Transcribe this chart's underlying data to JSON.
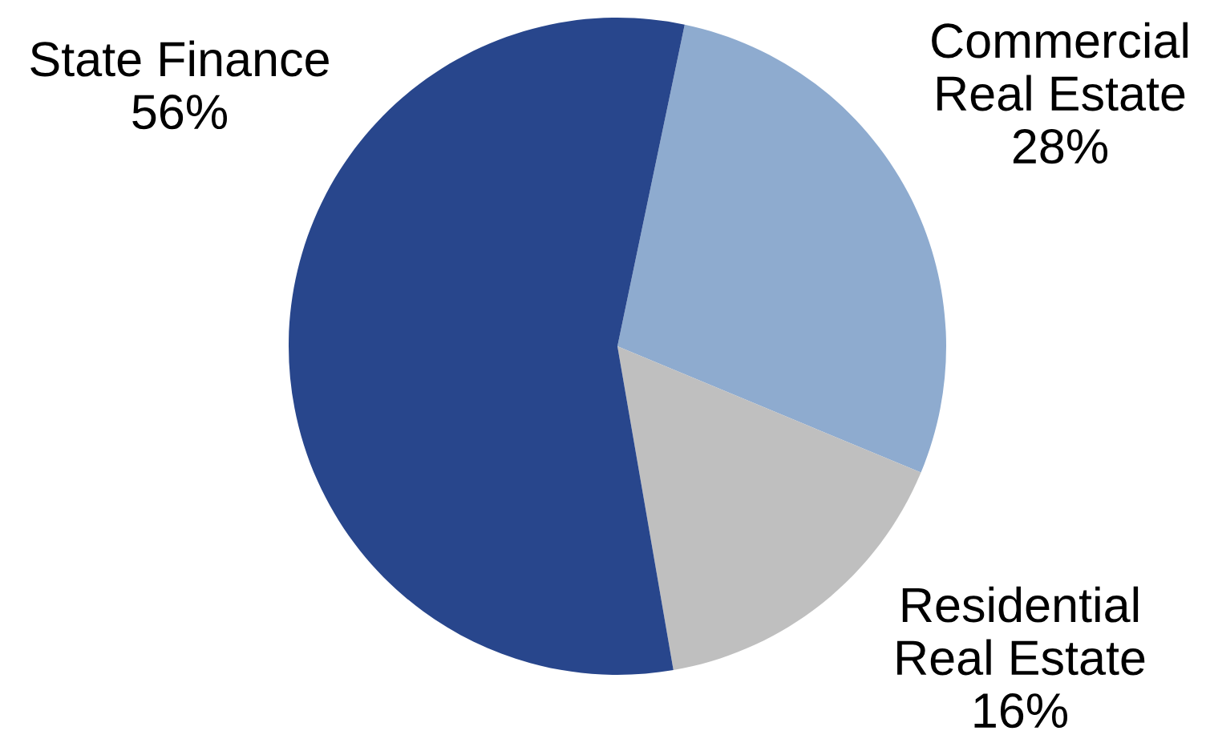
{
  "chart_data": {
    "type": "pie",
    "categories": [
      "Commercial\nReal Estate",
      "Residential\nReal Estate",
      "State Finance"
    ],
    "values": [
      28,
      16,
      56
    ],
    "colors": [
      "#8eabcf",
      "#bfbfbf",
      "#28468c"
    ],
    "value_labels": [
      "28%",
      "16%",
      "56%"
    ]
  }
}
